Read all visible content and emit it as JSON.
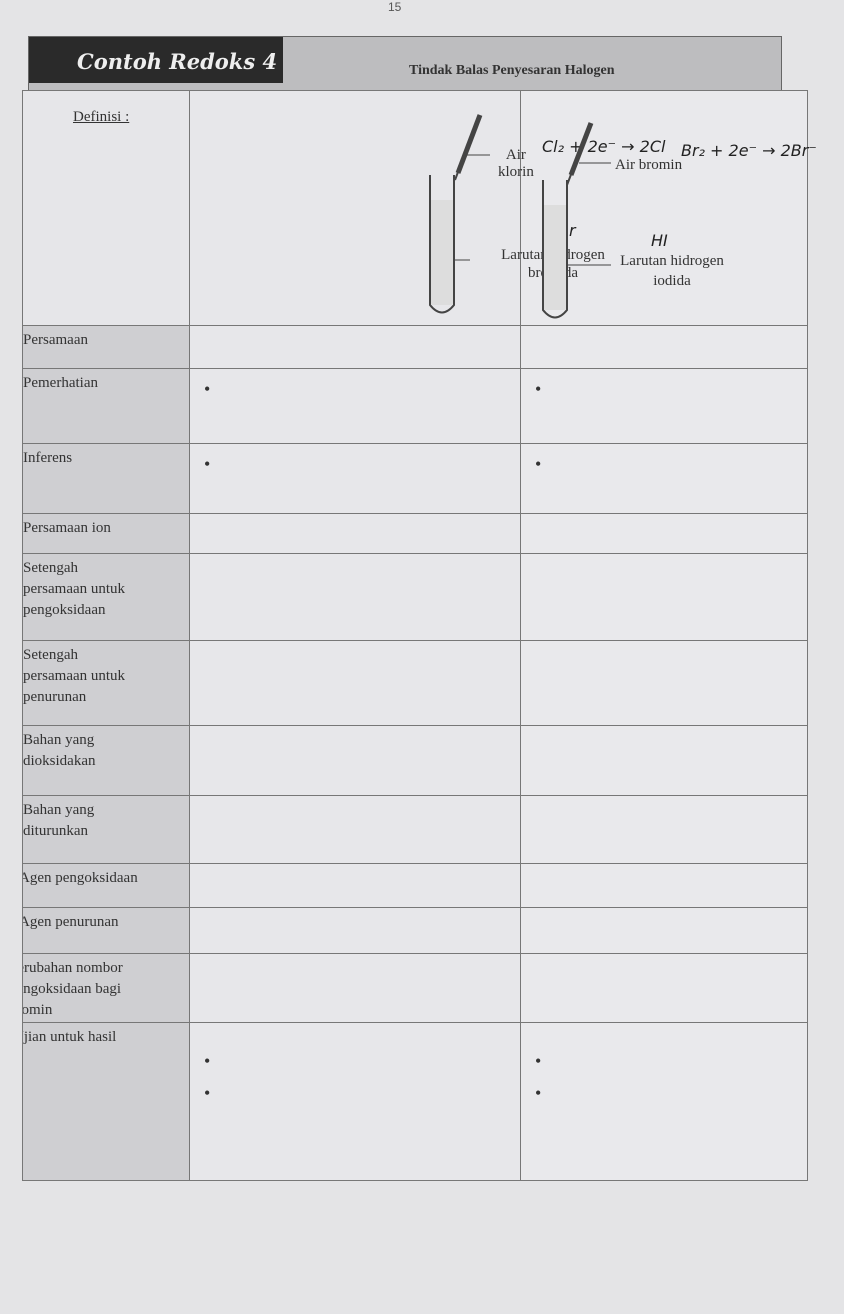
{
  "page_number": "15",
  "header": {
    "title": "Contoh Redoks 4",
    "subtitle": "Tindak Balas Penyesaran Halogen"
  },
  "definition_label": "Definisi :",
  "diagram": {
    "left": {
      "dropper_label": "Air klorin",
      "solution_label_1": "Larutan hidrogen",
      "solution_label_2": "bromida",
      "handwritten_equation": "Cl₂ + 2e⁻ → 2Cl",
      "handwritten_formula": "HBr"
    },
    "right": {
      "dropper_label": "Air bromin",
      "solution_label_1": "Larutan hidrogen",
      "solution_label_2": "iodida",
      "handwritten_equation": "Br₂ + 2e⁻ → 2Br⁻",
      "handwritten_formula": "HI"
    }
  },
  "rows": [
    {
      "label": [
        "Persamaan"
      ],
      "bullets": 0
    },
    {
      "label": [
        "Pemerhatian"
      ],
      "bullets": 1
    },
    {
      "label": [
        "Inferens"
      ],
      "bullets": 1
    },
    {
      "label": [
        "Persamaan ion"
      ],
      "bullets": 0
    },
    {
      "label": [
        "Setengah",
        "persamaan untuk",
        "pengoksidaan"
      ],
      "bullets": 0
    },
    {
      "label": [
        "Setengah",
        "persamaan untuk",
        "penurunan"
      ],
      "bullets": 0
    },
    {
      "label": [
        "Bahan yang",
        "dioksidakan"
      ],
      "bullets": 0
    },
    {
      "label": [
        "Bahan yang",
        "diturunkan"
      ],
      "bullets": 0
    },
    {
      "label": [
        "Agen pengoksidaan"
      ],
      "bullets": 0
    },
    {
      "label": [
        "Agen penurunan"
      ],
      "bullets": 0
    },
    {
      "label": [
        "Perubahan nombor",
        "pengoksidaan bagi",
        "bromin"
      ],
      "bullets": 0
    },
    {
      "label": [
        "Ujian untuk hasil"
      ],
      "bullets": 2
    }
  ],
  "bullet": "•"
}
